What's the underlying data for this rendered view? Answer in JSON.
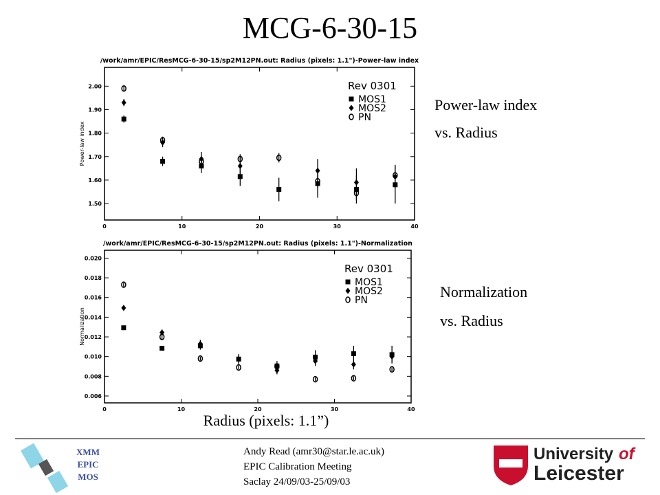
{
  "slide": {
    "title": "MCG-6-30-15",
    "side_labels": [
      [
        "Power-law index",
        "vs. Radius"
      ],
      [
        "Normalization",
        "vs. Radius"
      ]
    ],
    "x_caption": "Radius (pixels: 1.1”)",
    "badge": [
      "XMM",
      "EPIC",
      "MOS"
    ],
    "footer": [
      "Andy Read (amr30@star.le.ac.uk)",
      "EPIC Calibration Meeting",
      "Saclay 24/09/03-25/09/03"
    ],
    "logo": [
      "University",
      "of",
      "Leicester"
    ]
  },
  "chart_data": [
    {
      "type": "scatter",
      "title": "/work/amr/EPIC/ResMCG-6-30-15/sp2M12PN.out: Radius (pixels: 1.1\")-Power-law index",
      "y_label": "Power-law index",
      "legend_title": "Rev 0301",
      "x": [
        2.5,
        7.5,
        12.5,
        17.5,
        22.5,
        27.5,
        32.5,
        37.5
      ],
      "xlim": [
        0,
        40
      ],
      "xticks": [
        0,
        10,
        20,
        30,
        40
      ],
      "ylim": [
        1.43,
        2.08
      ],
      "yticks": [
        {
          "value": 1.5,
          "label": "1.50"
        },
        {
          "value": 1.6,
          "label": "1.60"
        },
        {
          "value": 1.7,
          "label": "1.70"
        },
        {
          "value": 1.8,
          "label": "1.80"
        },
        {
          "value": 1.9,
          "label": "1.90"
        },
        {
          "value": 2.0,
          "label": "2.00"
        }
      ],
      "series": [
        {
          "name": "MOS1",
          "marker": "square",
          "color": "#000000",
          "values": [
            1.86,
            1.68,
            1.66,
            1.615,
            1.56,
            1.585,
            1.56,
            1.58
          ],
          "errors": [
            0.015,
            0.02,
            0.03,
            0.04,
            0.05,
            0.06,
            0.06,
            0.08
          ]
        },
        {
          "name": "MOS2",
          "marker": "diamond",
          "color": "#000000",
          "values": [
            1.93,
            1.76,
            1.69,
            1.66,
            null,
            1.64,
            1.59,
            1.615
          ],
          "errors": [
            0.015,
            0.02,
            0.03,
            0.04,
            null,
            0.05,
            0.06,
            0.05
          ]
        },
        {
          "name": "PN",
          "marker": "circle",
          "color": "#000000",
          "values": [
            1.99,
            1.77,
            1.68,
            1.69,
            1.695,
            1.595,
            1.545,
            1.62
          ],
          "errors": [
            0.01,
            0.015,
            0.02,
            0.02,
            0.02,
            0.03,
            0.03,
            0.04
          ]
        }
      ]
    },
    {
      "type": "scatter",
      "title": "/work/amr/EPIC/ResMCG-6-30-15/sp2M12PN.out: Radius (pixels: 1.1\")-Normalization",
      "y_label": "Normalization",
      "legend_title": "Rev 0301",
      "x": [
        2.5,
        7.5,
        12.5,
        17.5,
        22.5,
        27.5,
        32.5,
        37.5
      ],
      "xlim": [
        0,
        40
      ],
      "xticks": [
        0,
        10,
        20,
        30,
        40
      ],
      "ylim": [
        0.0053,
        0.0208
      ],
      "yticks": [
        {
          "value": 0.006,
          "label": "0.006"
        },
        {
          "value": 0.008,
          "label": "0.008"
        },
        {
          "value": 0.01,
          "label": "0.010"
        },
        {
          "value": 0.012,
          "label": "0.012"
        },
        {
          "value": 0.014,
          "label": "0.014"
        },
        {
          "value": 0.016,
          "label": "0.016"
        },
        {
          "value": 0.018,
          "label": "0.018"
        },
        {
          "value": 0.02,
          "label": "0.020"
        }
      ],
      "series": [
        {
          "name": "MOS1",
          "marker": "square",
          "color": "#000000",
          "values": [
            0.01293,
            0.01085,
            0.0111,
            0.00975,
            0.00905,
            0.00995,
            0.0103,
            0.0102
          ],
          "errors": [
            0.0002,
            0.0002,
            0.0004,
            0.0005,
            0.0005,
            0.0007,
            0.0008,
            0.0009
          ]
        },
        {
          "name": "MOS2",
          "marker": "diamond",
          "color": "#000000",
          "values": [
            0.01494,
            0.01245,
            0.0113,
            0.00975,
            0.0086,
            0.00955,
            0.0092,
            0.01
          ],
          "errors": [
            0.0002,
            0.0003,
            0.0004,
            0.0004,
            0.0004,
            0.0005,
            0.0005,
            0.0005
          ]
        },
        {
          "name": "PN",
          "marker": "circle",
          "color": "#000000",
          "values": [
            0.0173,
            0.012,
            0.0098,
            0.0089,
            0.009,
            0.0077,
            0.0078,
            0.0087
          ],
          "errors": [
            0.0002,
            0.0003,
            0.0002,
            0.0002,
            0.0002,
            0.0002,
            0.0002,
            0.0002
          ]
        }
      ]
    }
  ]
}
